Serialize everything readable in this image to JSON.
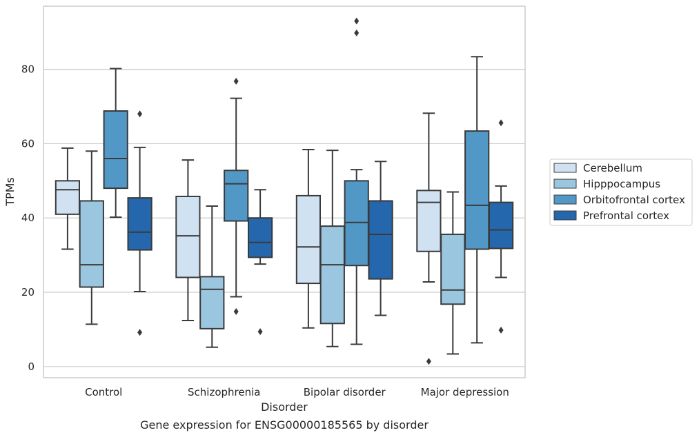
{
  "chart_data": {
    "type": "box",
    "title": "Gene expression for ENSG00000185565 by disorder",
    "xlabel": "Disorder",
    "ylabel": "TPMs",
    "ylim": [
      -3,
      97
    ],
    "yticks": [
      0,
      20,
      40,
      60,
      80
    ],
    "grid": "horizontal",
    "legend_position": "right",
    "categories": [
      "Control",
      "Schizophrenia",
      "Bipolar disorder",
      "Major depression"
    ],
    "series": [
      {
        "name": "Cerebellum",
        "color": "#d0e2f2",
        "boxes": [
          {
            "whislo": 31.6,
            "q1": 41.0,
            "med": 47.6,
            "q3": 50.0,
            "whishi": 58.8,
            "fliers": []
          },
          {
            "whislo": 12.4,
            "q1": 24.0,
            "med": 35.2,
            "q3": 45.8,
            "whishi": 55.6,
            "fliers": []
          },
          {
            "whislo": 10.4,
            "q1": 22.4,
            "med": 32.2,
            "q3": 46.0,
            "whishi": 58.4,
            "fliers": []
          },
          {
            "whislo": 22.8,
            "q1": 31.0,
            "med": 44.2,
            "q3": 47.4,
            "whishi": 68.2,
            "fliers": [
              1.4
            ]
          }
        ]
      },
      {
        "name": "Hipppocampus",
        "color": "#9ac6df",
        "boxes": [
          {
            "whislo": 11.4,
            "q1": 21.4,
            "med": 27.4,
            "q3": 44.6,
            "whishi": 58.0,
            "fliers": []
          },
          {
            "whislo": 5.2,
            "q1": 10.2,
            "med": 20.8,
            "q3": 24.2,
            "whishi": 43.2,
            "fliers": []
          },
          {
            "whislo": 5.4,
            "q1": 11.6,
            "med": 27.4,
            "q3": 37.8,
            "whishi": 58.2,
            "fliers": []
          },
          {
            "whislo": 3.4,
            "q1": 16.8,
            "med": 20.6,
            "q3": 35.6,
            "whishi": 47.0,
            "fliers": []
          }
        ]
      },
      {
        "name": "Orbitofrontal cortex",
        "color": "#5298c6",
        "boxes": [
          {
            "whislo": 40.2,
            "q1": 48.0,
            "med": 56.0,
            "q3": 68.8,
            "whishi": 80.2,
            "fliers": []
          },
          {
            "whislo": 18.8,
            "q1": 39.2,
            "med": 49.2,
            "q3": 52.8,
            "whishi": 72.2,
            "fliers": [
              76.8,
              14.8
            ]
          },
          {
            "whislo": 6.0,
            "q1": 27.2,
            "med": 38.8,
            "q3": 50.0,
            "whishi": 53.0,
            "fliers": [
              93.0,
              89.8
            ]
          },
          {
            "whislo": 6.4,
            "q1": 31.6,
            "med": 43.4,
            "q3": 63.4,
            "whishi": 83.4,
            "fliers": []
          }
        ]
      },
      {
        "name": "Prefrontal cortex",
        "color": "#2567ad",
        "boxes": [
          {
            "whislo": 20.2,
            "q1": 31.4,
            "med": 36.2,
            "q3": 45.4,
            "whishi": 59.0,
            "fliers": [
              68.0,
              9.2
            ]
          },
          {
            "whislo": 27.6,
            "q1": 29.4,
            "med": 33.4,
            "q3": 40.0,
            "whishi": 47.6,
            "fliers": [
              9.4
            ]
          },
          {
            "whislo": 13.8,
            "q1": 23.6,
            "med": 35.6,
            "q3": 44.6,
            "whishi": 55.2,
            "fliers": []
          },
          {
            "whislo": 24.0,
            "q1": 31.8,
            "med": 36.8,
            "q3": 44.2,
            "whishi": 48.6,
            "fliers": [
              65.6,
              9.8
            ]
          }
        ]
      }
    ]
  }
}
